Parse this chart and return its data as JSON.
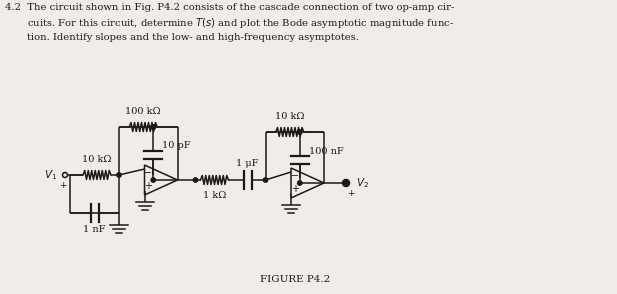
{
  "bg_color": "#f0ede8",
  "line_color": "#1a1a1a",
  "figure_label": "FIGURE P4.2",
  "R1_label": "10 kΩ",
  "R2_label": "100 kΩ",
  "C1_label": "10 pF",
  "C2_label": "1 nF",
  "R3_label": "1 kΩ",
  "C3_label": "1 μF",
  "R4_label": "10 kΩ",
  "C4_label": "100 nF",
  "V1_label": "$V_1$",
  "V2_label": "$V_2$",
  "title_line1": "4.2  The circuit shown in Fig. P4.2 consists of the cascade connection of two op-amp cir-",
  "title_line2": "       cuits. For this circuit, determine $T(s)$ and plot the Bode asymptotic magnitude func-",
  "title_line3": "       tion. Identify slopes and the low- and high-frequency asymptotes."
}
